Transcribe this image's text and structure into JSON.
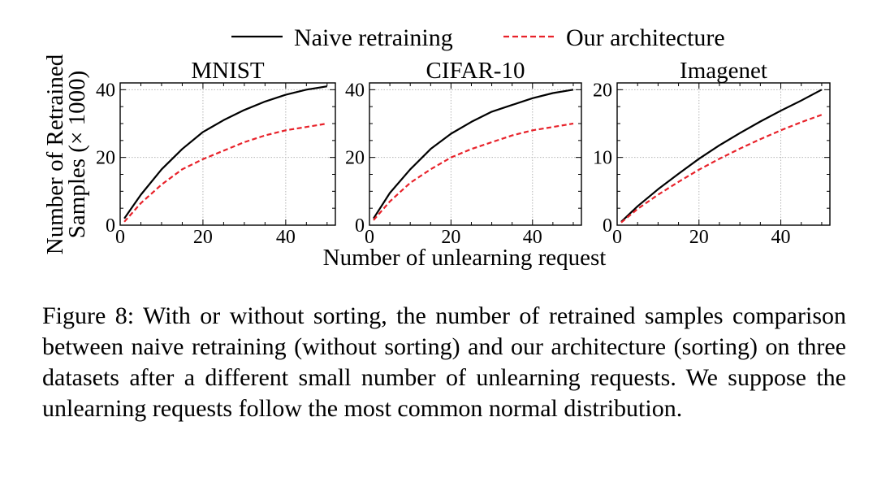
{
  "legend": [
    {
      "label": "Naive retraining",
      "color": "#000000",
      "dash": "solid"
    },
    {
      "label": "Our architecture",
      "color": "#e8222a",
      "dash": "dashed"
    }
  ],
  "shared_ylabel": [
    "Number of Retrained",
    "Samples (× 1000)"
  ],
  "shared_xlabel": "Number of unlearning request",
  "caption": {
    "label": "Figure 8: ",
    "text": "With or without sorting, the number of retrained samples comparison between naive retraining (without sorting) and our architecture (sorting) on three datasets after a different small number of unlearning requests. We suppose the unlearning requests follow the most common normal distribution."
  },
  "chart_data": [
    {
      "type": "line",
      "title": "MNIST",
      "xlim": [
        0,
        52
      ],
      "ylim": [
        0,
        42
      ],
      "xticks": [
        0,
        20,
        40
      ],
      "yticks": [
        0,
        20,
        40
      ],
      "grid": true,
      "legend_placement": "top",
      "series": [
        {
          "name": "Naive retraining",
          "color": "#000000",
          "dash": "solid",
          "points": [
            [
              1,
              2
            ],
            [
              5,
              9
            ],
            [
              10,
              16.5
            ],
            [
              15,
              22.5
            ],
            [
              20,
              27.5
            ],
            [
              25,
              31
            ],
            [
              30,
              34
            ],
            [
              35,
              36.5
            ],
            [
              40,
              38.5
            ],
            [
              45,
              40
            ],
            [
              50,
              41
            ]
          ]
        },
        {
          "name": "Our architecture",
          "color": "#e8222a",
          "dash": "dashed",
          "points": [
            [
              1,
              1
            ],
            [
              5,
              6.5
            ],
            [
              10,
              12
            ],
            [
              15,
              16.5
            ],
            [
              20,
              19.5
            ],
            [
              25,
              22
            ],
            [
              30,
              24.5
            ],
            [
              35,
              26.5
            ],
            [
              40,
              28
            ],
            [
              45,
              29
            ],
            [
              50,
              30
            ]
          ]
        }
      ]
    },
    {
      "type": "line",
      "title": "CIFAR-10",
      "xlim": [
        0,
        52
      ],
      "ylim": [
        0,
        42
      ],
      "xticks": [
        0,
        20,
        40
      ],
      "yticks": [
        0,
        20,
        40
      ],
      "grid": true,
      "series": [
        {
          "name": "Naive retraining",
          "color": "#000000",
          "dash": "solid",
          "points": [
            [
              1,
              2
            ],
            [
              5,
              9.5
            ],
            [
              10,
              16.5
            ],
            [
              15,
              22.5
            ],
            [
              20,
              27
            ],
            [
              25,
              30.5
            ],
            [
              30,
              33.5
            ],
            [
              35,
              35.5
            ],
            [
              40,
              37.5
            ],
            [
              45,
              39
            ],
            [
              50,
              40
            ]
          ]
        },
        {
          "name": "Our architecture",
          "color": "#e8222a",
          "dash": "dashed",
          "points": [
            [
              1,
              1.5
            ],
            [
              5,
              7
            ],
            [
              10,
              12.5
            ],
            [
              15,
              16.5
            ],
            [
              20,
              20
            ],
            [
              25,
              22.5
            ],
            [
              30,
              24.5
            ],
            [
              35,
              26.5
            ],
            [
              40,
              28
            ],
            [
              45,
              29
            ],
            [
              50,
              30
            ]
          ]
        }
      ]
    },
    {
      "type": "line",
      "title": "Imagenet",
      "xlim": [
        0,
        52
      ],
      "ylim": [
        0,
        21
      ],
      "xticks": [
        0,
        20,
        40
      ],
      "yticks": [
        0,
        10,
        20
      ],
      "grid": true,
      "series": [
        {
          "name": "Naive retraining",
          "color": "#000000",
          "dash": "solid",
          "points": [
            [
              1,
              0.5
            ],
            [
              5,
              2.8
            ],
            [
              10,
              5.3
            ],
            [
              15,
              7.6
            ],
            [
              20,
              9.8
            ],
            [
              25,
              11.8
            ],
            [
              30,
              13.6
            ],
            [
              35,
              15.3
            ],
            [
              40,
              16.9
            ],
            [
              45,
              18.4
            ],
            [
              50,
              20
            ]
          ]
        },
        {
          "name": "Our architecture",
          "color": "#e8222a",
          "dash": "dashed",
          "points": [
            [
              1,
              0.4
            ],
            [
              5,
              2.4
            ],
            [
              10,
              4.5
            ],
            [
              15,
              6.4
            ],
            [
              20,
              8.2
            ],
            [
              25,
              9.8
            ],
            [
              30,
              11.3
            ],
            [
              35,
              12.7
            ],
            [
              40,
              14
            ],
            [
              45,
              15.2
            ],
            [
              50,
              16.3
            ]
          ]
        }
      ]
    }
  ]
}
